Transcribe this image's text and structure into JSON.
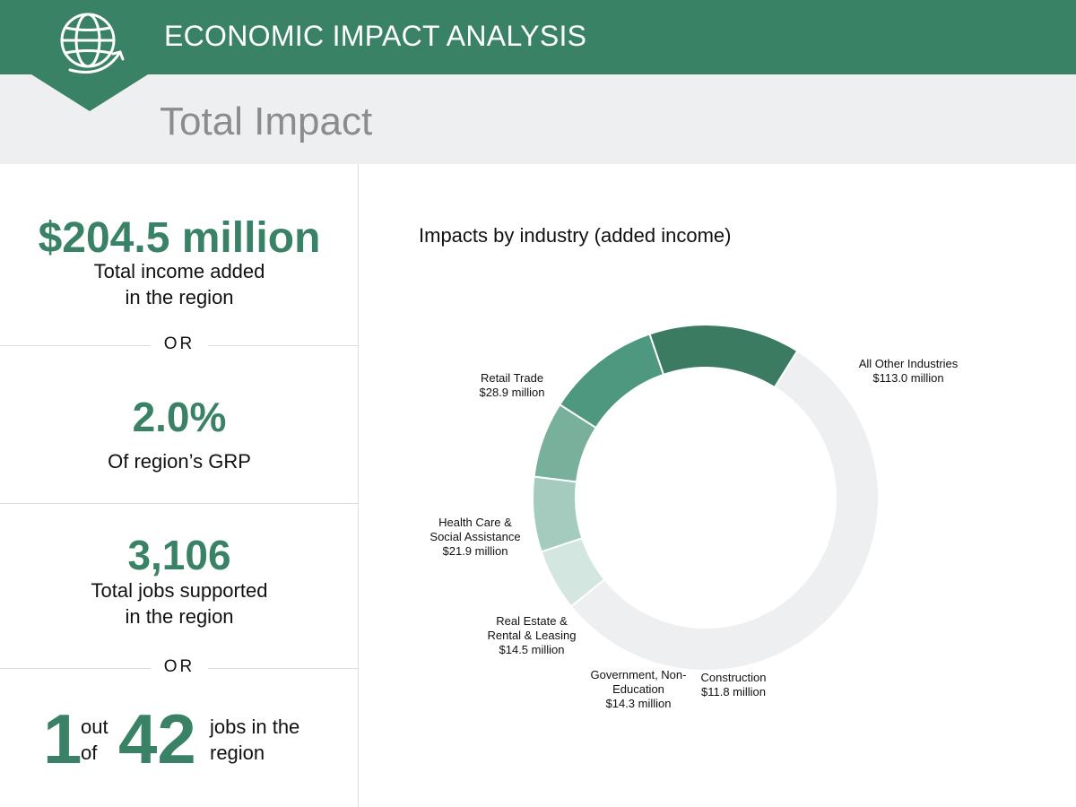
{
  "header": {
    "title": "ECONOMIC IMPACT ANALYSIS",
    "subtitle": "Total Impact",
    "icon": "globe-arrow-icon",
    "colors": {
      "brand": "#3a8266",
      "subtitle_bg": "#eeeff0",
      "subtitle_text": "#8a8c8e"
    }
  },
  "stats": {
    "income": {
      "value": "$204.5 million",
      "label_line1": "Total income added",
      "label_line2": "in the region"
    },
    "or1": "OR",
    "grp": {
      "value": "2.0%",
      "label": "Of region’s GRP"
    },
    "jobs": {
      "value": "3,106",
      "label_line1": "Total jobs supported",
      "label_line2": "in the region"
    },
    "or2": "OR",
    "ratio": {
      "one": "1",
      "out": "out",
      "of": "of",
      "forty_two": "42",
      "jobs_line1": "jobs in the",
      "jobs_line2": "region"
    }
  },
  "chart_data": {
    "type": "pie",
    "title": "Impacts by industry (added income)",
    "donut": true,
    "unit": "$ million",
    "slices": [
      {
        "name": "All Other Industries",
        "value": 113.0,
        "value_label": "$113.0 million",
        "label_lines": [
          "All Other Industries",
          "$113.0 million"
        ],
        "color": "#eeeff0"
      },
      {
        "name": "Construction",
        "value": 11.8,
        "value_label": "$11.8 million",
        "label_lines": [
          "Construction",
          "$11.8 million"
        ],
        "color": "#d3e7e0"
      },
      {
        "name": "Government, Non-Education",
        "value": 14.3,
        "value_label": "$14.3 million",
        "label_lines": [
          "Government, Non-",
          "Education",
          "$14.3 million"
        ],
        "color": "#a4cbbe"
      },
      {
        "name": "Real Estate & Rental & Leasing",
        "value": 14.5,
        "value_label": "$14.5 million",
        "label_lines": [
          "Real Estate &",
          "Rental & Leasing",
          "$14.5 million"
        ],
        "color": "#79b09c"
      },
      {
        "name": "Health Care & Social Assistance",
        "value": 21.9,
        "value_label": "$21.9 million",
        "label_lines": [
          "Health Care &",
          "Social Assistance",
          "$21.9 million"
        ],
        "color": "#4e9880"
      },
      {
        "name": "Retail Trade",
        "value": 28.9,
        "value_label": "$28.9 million",
        "label_lines": [
          "Retail Trade",
          "$28.9 million"
        ],
        "color": "#3a7b62"
      }
    ]
  }
}
